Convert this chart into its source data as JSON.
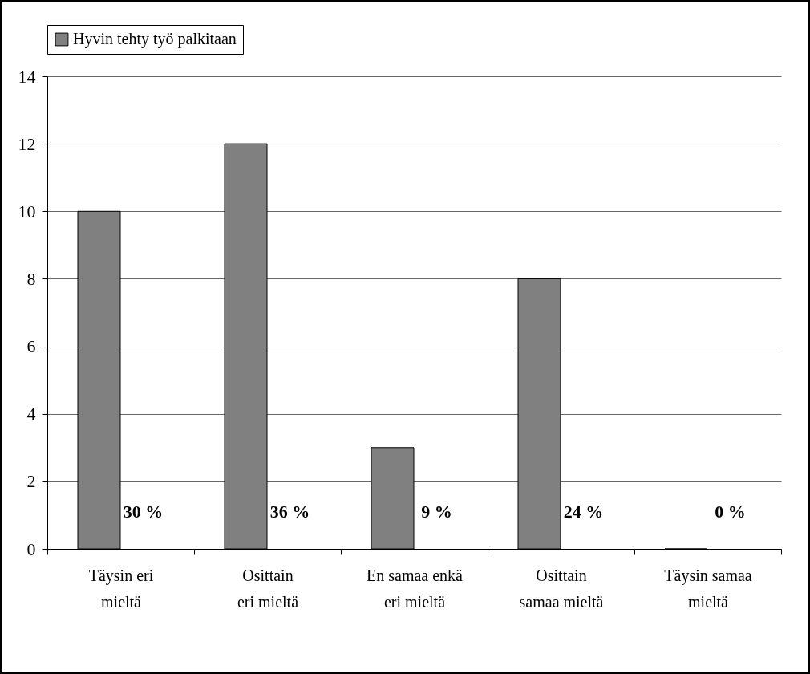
{
  "chart_data": {
    "type": "bar",
    "categories": [
      "Täysin eri mieltä",
      "Osittain eri mieltä",
      "En samaa enkä eri mieltä",
      "Osittain samaa mieltä",
      "Täysin samaa mieltä"
    ],
    "series": [
      {
        "name": "Hyvin tehty työ palkitaan",
        "color": "#808080",
        "values": [
          10,
          12,
          3,
          8,
          0
        ]
      }
    ],
    "value_labels": [
      "30 %",
      "36 %",
      "9 %",
      "24 %",
      "0 %"
    ],
    "ylim": [
      0,
      14
    ],
    "yticks": [
      0,
      2,
      4,
      6,
      8,
      10,
      12,
      14
    ],
    "grid": "y",
    "legend": "top"
  }
}
